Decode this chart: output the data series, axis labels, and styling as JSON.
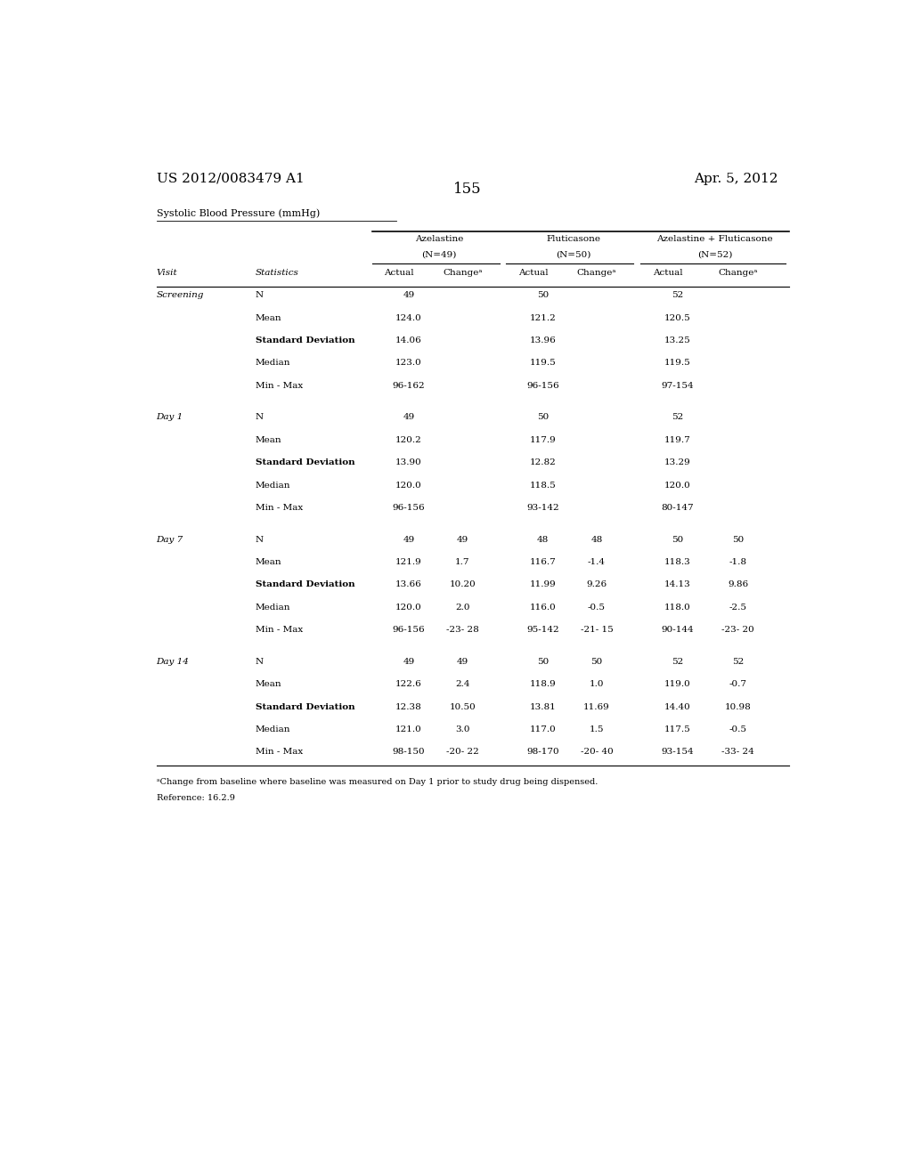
{
  "page_number": "155",
  "patent_left": "US 2012/0083479 A1",
  "patent_right": "Apr. 5, 2012",
  "table_title": "Systolic Blood Pressure (mmHg)",
  "rows": [
    [
      "Screening",
      "N",
      "49",
      "",
      "50",
      "",
      "52",
      ""
    ],
    [
      "",
      "Mean",
      "124.0",
      "",
      "121.2",
      "",
      "120.5",
      ""
    ],
    [
      "",
      "Standard Deviation",
      "14.06",
      "",
      "13.96",
      "",
      "13.25",
      ""
    ],
    [
      "",
      "Median",
      "123.0",
      "",
      "119.5",
      "",
      "119.5",
      ""
    ],
    [
      "",
      "Min - Max",
      "96-162",
      "",
      "96-156",
      "",
      "97-154",
      ""
    ],
    [
      "Day 1",
      "N",
      "49",
      "",
      "50",
      "",
      "52",
      ""
    ],
    [
      "",
      "Mean",
      "120.2",
      "",
      "117.9",
      "",
      "119.7",
      ""
    ],
    [
      "",
      "Standard Deviation",
      "13.90",
      "",
      "12.82",
      "",
      "13.29",
      ""
    ],
    [
      "",
      "Median",
      "120.0",
      "",
      "118.5",
      "",
      "120.0",
      ""
    ],
    [
      "",
      "Min - Max",
      "96-156",
      "",
      "93-142",
      "",
      "80-147",
      ""
    ],
    [
      "Day 7",
      "N",
      "49",
      "49",
      "48",
      "48",
      "50",
      "50"
    ],
    [
      "",
      "Mean",
      "121.9",
      "1.7",
      "116.7",
      "-1.4",
      "118.3",
      "-1.8"
    ],
    [
      "",
      "Standard Deviation",
      "13.66",
      "10.20",
      "11.99",
      "9.26",
      "14.13",
      "9.86"
    ],
    [
      "",
      "Median",
      "120.0",
      "2.0",
      "116.0",
      "-0.5",
      "118.0",
      "-2.5"
    ],
    [
      "",
      "Min - Max",
      "96-156",
      "-23- 28",
      "95-142",
      "-21- 15",
      "90-144",
      "-23- 20"
    ],
    [
      "Day 14",
      "N",
      "49",
      "49",
      "50",
      "50",
      "52",
      "52"
    ],
    [
      "",
      "Mean",
      "122.6",
      "2.4",
      "118.9",
      "1.0",
      "119.0",
      "-0.7"
    ],
    [
      "",
      "Standard Deviation",
      "12.38",
      "10.50",
      "13.81",
      "11.69",
      "14.40",
      "10.98"
    ],
    [
      "",
      "Median",
      "121.0",
      "3.0",
      "117.0",
      "1.5",
      "117.5",
      "-0.5"
    ],
    [
      "",
      "Min - Max",
      "98-150",
      "-20- 22",
      "98-170",
      "-20- 40",
      "93-154",
      "-33- 24"
    ]
  ],
  "footnote": "ᵃChange from baseline where baseline was measured on Day 1 prior to study drug being dispensed.",
  "reference": "Reference: 16.2.9",
  "background_color": "#ffffff"
}
